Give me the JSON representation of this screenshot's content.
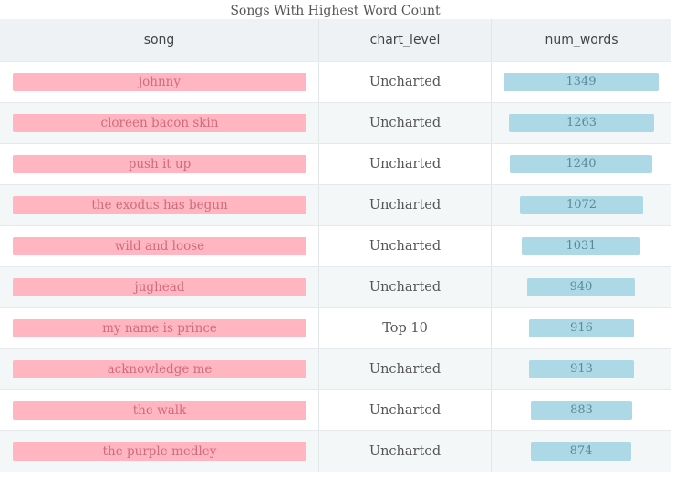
{
  "title": "Songs With Highest Word Count",
  "columns": [
    "song",
    "chart_level",
    "num_words"
  ],
  "colors": {
    "song_bar": "#ffb6c1",
    "words_bar": "#add8e6",
    "header_bg": "#eef2f4"
  },
  "rows": [
    {
      "song": "johnny",
      "chart_level": "Uncharted",
      "num_words": 1349
    },
    {
      "song": "cloreen bacon skin",
      "chart_level": "Uncharted",
      "num_words": 1263
    },
    {
      "song": "push it up",
      "chart_level": "Uncharted",
      "num_words": 1240
    },
    {
      "song": "the exodus has begun",
      "chart_level": "Uncharted",
      "num_words": 1072
    },
    {
      "song": "wild and loose",
      "chart_level": "Uncharted",
      "num_words": 1031
    },
    {
      "song": "jughead",
      "chart_level": "Uncharted",
      "num_words": 940
    },
    {
      "song": "my name is prince",
      "chart_level": "Top 10",
      "num_words": 916
    },
    {
      "song": "acknowledge me",
      "chart_level": "Uncharted",
      "num_words": 913
    },
    {
      "song": "the walk",
      "chart_level": "Uncharted",
      "num_words": 883
    },
    {
      "song": "the purple medley",
      "chart_level": "Uncharted",
      "num_words": 874
    }
  ],
  "chart_data": {
    "type": "table",
    "title": "Songs With Highest Word Count",
    "columns": [
      "song",
      "chart_level",
      "num_words"
    ],
    "categories": [
      "johnny",
      "cloreen bacon skin",
      "push it up",
      "the exodus has begun",
      "wild and loose",
      "jughead",
      "my name is prince",
      "acknowledge me",
      "the walk",
      "the purple medley"
    ],
    "series": [
      {
        "name": "num_words",
        "values": [
          1349,
          1263,
          1240,
          1072,
          1031,
          940,
          916,
          913,
          883,
          874
        ]
      }
    ],
    "chart_level": [
      "Uncharted",
      "Uncharted",
      "Uncharted",
      "Uncharted",
      "Uncharted",
      "Uncharted",
      "Top 10",
      "Uncharted",
      "Uncharted",
      "Uncharted"
    ]
  }
}
